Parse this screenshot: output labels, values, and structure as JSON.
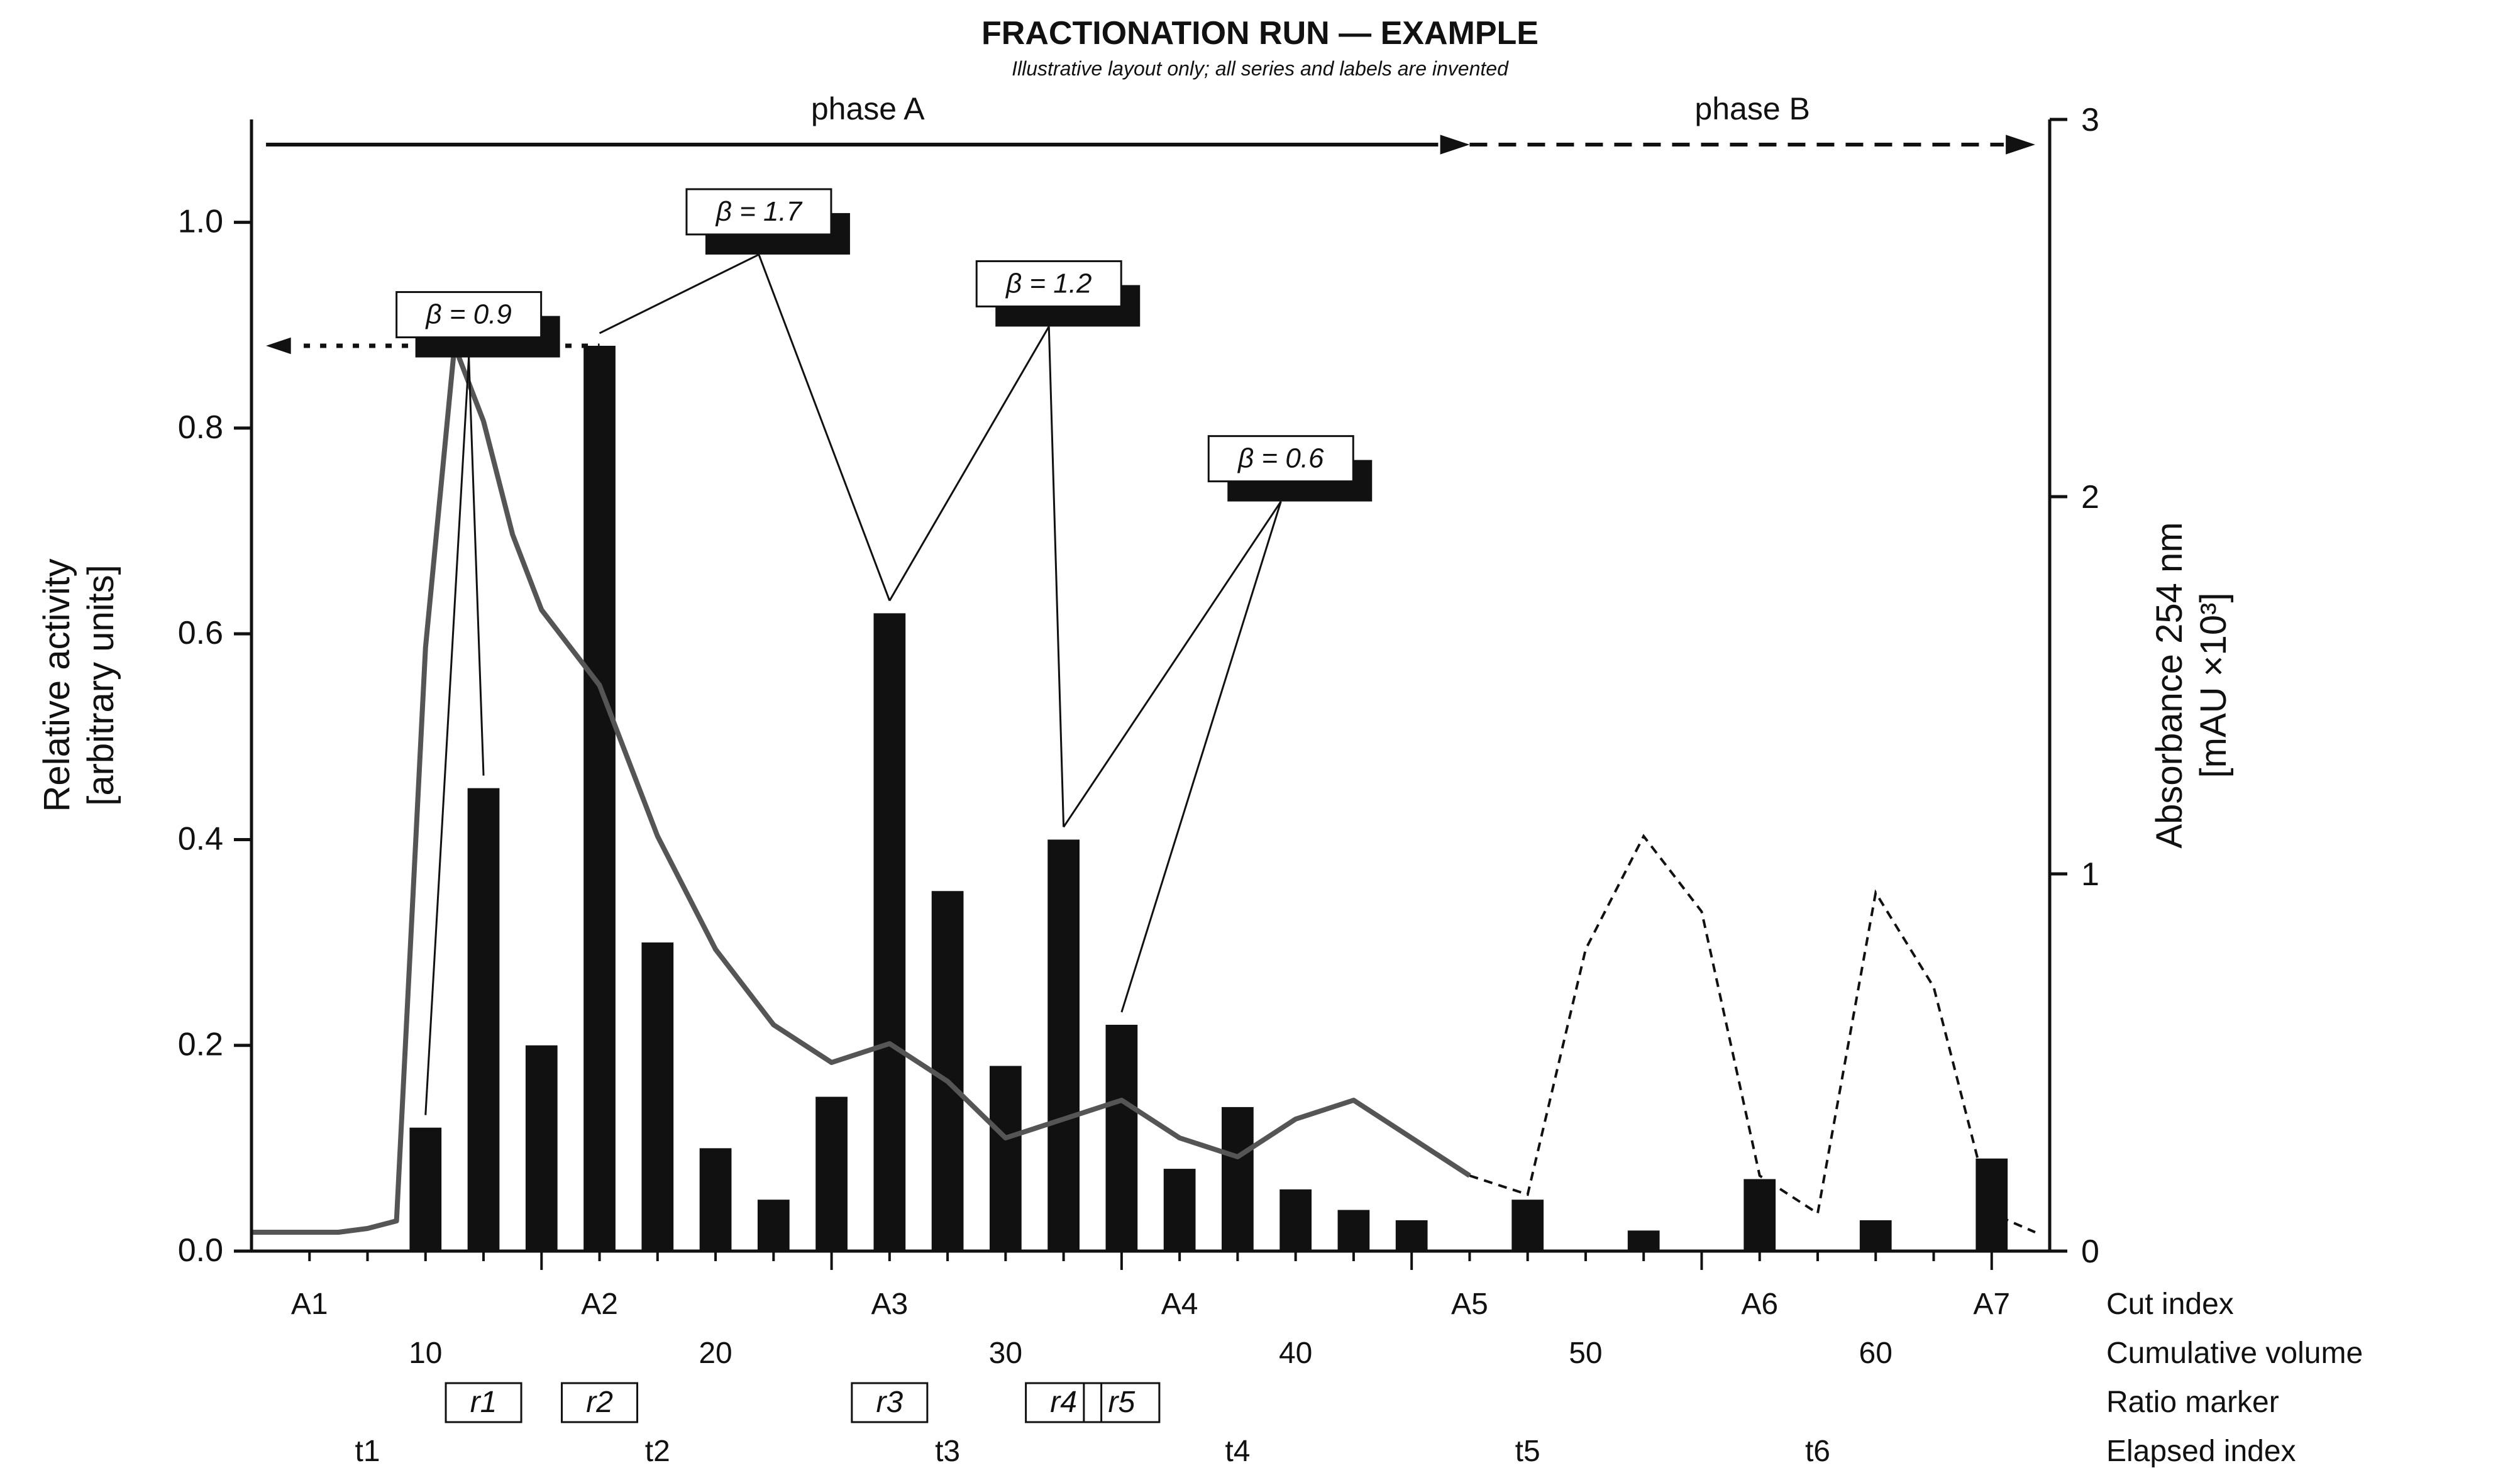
{
  "chart_data": {
    "type": "bar",
    "title": "FRACTIONATION RUN — EXAMPLE",
    "subtitle": "Illustrative layout only; all series and labels are invented",
    "ylabel_left": [
      "Relative activity",
      "[arbitrary units]"
    ],
    "ylabel_right": [
      "Absorbance 254 nm",
      "[mAU ×10³]"
    ],
    "x_range": [
      0,
      62
    ],
    "ylim_left": [
      0,
      1.1
    ],
    "ylim_right": [
      0,
      3
    ],
    "left_ticks": [
      "0.0",
      "0.2",
      "0.4",
      "0.6",
      "0.8",
      "1.0"
    ],
    "right_ticks": [
      "0",
      "1",
      "2",
      "3"
    ],
    "phases": [
      {
        "label": "phase A",
        "from": 0.5,
        "to": 42,
        "style": "solid"
      },
      {
        "label": "phase B",
        "from": 42,
        "to": 61.5,
        "style": "dashed"
      }
    ],
    "bars": {
      "x": [
        6,
        8,
        10,
        12,
        14,
        16,
        18,
        20,
        22,
        24,
        26,
        28,
        30,
        32,
        34,
        36,
        38,
        40,
        44,
        48,
        52,
        56,
        60
      ],
      "values": [
        0.12,
        0.45,
        0.2,
        0.88,
        0.3,
        0.1,
        0.05,
        0.15,
        0.62,
        0.35,
        0.18,
        0.4,
        0.22,
        0.08,
        0.14,
        0.06,
        0.04,
        0.03,
        0.05,
        0.02,
        0.07,
        0.03,
        0.09
      ]
    },
    "trace_main": {
      "x": [
        0,
        3,
        4,
        5,
        6,
        7,
        8,
        9,
        10,
        12,
        14,
        16,
        18,
        20,
        22,
        24,
        26,
        28,
        30,
        32,
        34,
        36,
        38,
        40,
        42
      ],
      "y": [
        0.05,
        0.05,
        0.06,
        0.08,
        1.6,
        2.4,
        2.2,
        1.9,
        1.7,
        1.5,
        1.1,
        0.8,
        0.6,
        0.5,
        0.55,
        0.45,
        0.3,
        0.35,
        0.4,
        0.3,
        0.25,
        0.35,
        0.4,
        0.3,
        0.2
      ]
    },
    "trace_tail": {
      "x": [
        42,
        44,
        46,
        48,
        50,
        52,
        54,
        56,
        58,
        60,
        61.5
      ],
      "y": [
        0.2,
        0.15,
        0.8,
        1.1,
        0.9,
        0.2,
        0.1,
        0.95,
        0.7,
        0.1,
        0.05
      ]
    },
    "reference_line": {
      "value": 0.88,
      "from_x": 0.5,
      "to_x": 12
    },
    "callouts": [
      {
        "label": "β = 0.9",
        "targets": [
          6,
          8
        ],
        "anchor": [
          5,
          0.92
        ]
      },
      {
        "label": "β = 1.7",
        "targets": [
          12,
          22
        ],
        "anchor": [
          15,
          1.02
        ]
      },
      {
        "label": "β = 1.2",
        "targets": [
          22,
          28
        ],
        "anchor": [
          25,
          0.95
        ]
      },
      {
        "label": "β = 0.6",
        "targets": [
          28,
          30
        ],
        "anchor": [
          33,
          0.78
        ]
      }
    ],
    "label_rows": [
      {
        "name": "Cut index",
        "boxed": false,
        "italic": false,
        "at": [
          2,
          12,
          22,
          32,
          42,
          52,
          60
        ],
        "values": [
          "A1",
          "A2",
          "A3",
          "A4",
          "A5",
          "A6",
          "A7"
        ]
      },
      {
        "name": "Cumulative volume",
        "boxed": false,
        "italic": false,
        "at": [
          6,
          16,
          26,
          36,
          46,
          56
        ],
        "values": [
          "10",
          "20",
          "30",
          "40",
          "50",
          "60"
        ]
      },
      {
        "name": "Ratio marker",
        "boxed": true,
        "italic": true,
        "at": [
          8,
          12,
          22,
          28,
          30
        ],
        "values": [
          "r1",
          "r2",
          "r3",
          "r4",
          "r5"
        ]
      },
      {
        "name": "Elapsed index",
        "boxed": false,
        "italic": false,
        "at": [
          4,
          14,
          24,
          34,
          44,
          54
        ],
        "values": [
          "t1",
          "t2",
          "t3",
          "t4",
          "t5",
          "t6"
        ]
      }
    ],
    "grid": false,
    "legend": "none"
  }
}
